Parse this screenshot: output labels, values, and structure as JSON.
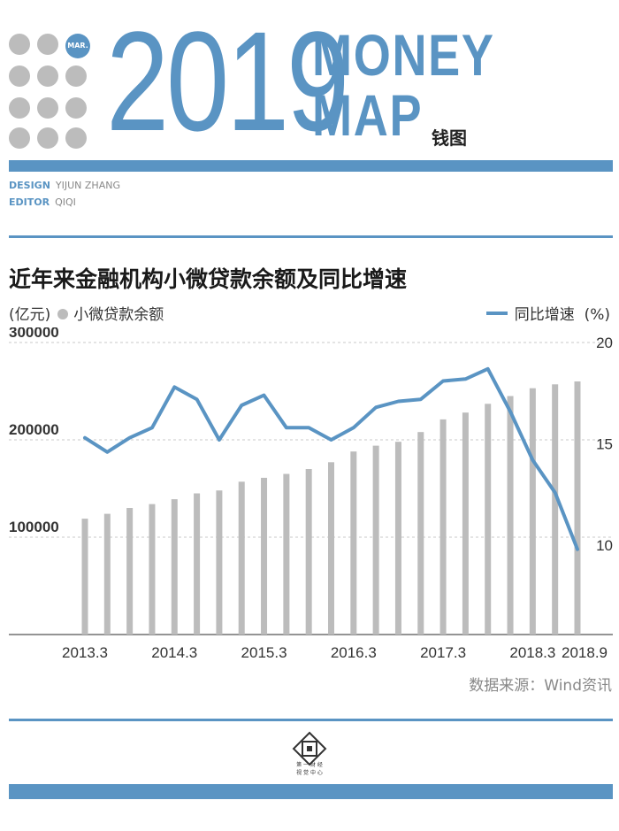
{
  "header": {
    "month_badge": "MAR.",
    "year": "2019",
    "series_line1": "MONEY",
    "series_line2": "MAP",
    "subtitle_zh": "钱图"
  },
  "credits": {
    "design_key": "DESIGN",
    "design_value": "YIJUN ZHANG",
    "editor_key": "EDITOR",
    "editor_value": "QIQI"
  },
  "legend": {
    "left_unit": "(亿元)",
    "bars_label": "小微贷款余额",
    "line_label": "同比增速",
    "right_unit": "(%)"
  },
  "source": "数据来源：Wind资讯",
  "logo": {
    "line1": "第 一 财 经",
    "line2": "视 觉 中 心"
  },
  "colors": {
    "accent": "#5a94c3",
    "bars": "#bcbcbc"
  },
  "chart_data": {
    "type": "bar+line",
    "title": "近年来金融机构小微贷款余额及同比增速",
    "categories": [
      "2013.3",
      "2013.6",
      "2013.9",
      "2013.12",
      "2014.3",
      "2014.6",
      "2014.9",
      "2014.12",
      "2015.3",
      "2015.6",
      "2015.9",
      "2015.12",
      "2016.3",
      "2016.6",
      "2016.9",
      "2016.12",
      "2017.3",
      "2017.6",
      "2017.9",
      "2017.12",
      "2018.3",
      "2018.6",
      "2018.9"
    ],
    "x_tick_labels": [
      "2013.3",
      "2014.3",
      "2015.3",
      "2016.3",
      "2017.3",
      "2018.3",
      "2018.9"
    ],
    "series": [
      {
        "name": "小微贷款余额",
        "type": "bar",
        "axis": "left",
        "unit": "亿元",
        "values": [
          119000,
          124000,
          130000,
          134000,
          139000,
          145000,
          148000,
          157000,
          161000,
          165000,
          170000,
          177000,
          188000,
          194000,
          198000,
          208000,
          221000,
          228000,
          237000,
          245000,
          253000,
          257000,
          260000
        ]
      },
      {
        "name": "同比增速",
        "type": "line",
        "axis": "right",
        "unit": "%",
        "values": [
          15.3,
          14.6,
          15.3,
          15.8,
          17.8,
          17.2,
          15.2,
          16.9,
          17.4,
          15.8,
          15.8,
          15.2,
          15.8,
          16.8,
          17.1,
          17.2,
          18.1,
          18.2,
          18.7,
          16.6,
          14.2,
          12.6,
          9.8
        ]
      }
    ],
    "y_left": {
      "ticks": [
        100000,
        200000,
        300000
      ],
      "tick_labels": [
        "100000",
        "200000",
        "300000"
      ],
      "range": [
        0,
        300000
      ]
    },
    "y_right": {
      "ticks": [
        10,
        15,
        20
      ],
      "tick_labels": [
        "10",
        "15",
        "20"
      ],
      "range": [
        5.6,
        20
      ]
    }
  }
}
